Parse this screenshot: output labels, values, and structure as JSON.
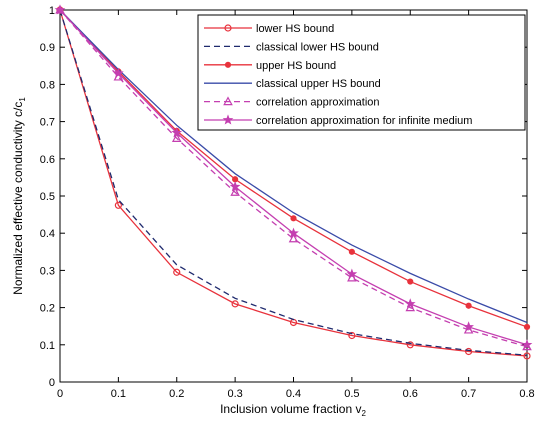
{
  "chart_data": {
    "type": "line",
    "title": "",
    "xlabel": "Inclusion volume fraction v",
    "xlabel_sub": "2",
    "ylabel": "Normalized effective conductivity c/c",
    "ylabel_sub": "1",
    "xlim": [
      0,
      0.8
    ],
    "ylim": [
      0,
      1
    ],
    "xticks": [
      "0",
      "0.1",
      "0.2",
      "0.3",
      "0.4",
      "0.5",
      "0.6",
      "0.7",
      "0.8"
    ],
    "yticks": [
      "0",
      "0.1",
      "0.2",
      "0.3",
      "0.4",
      "0.5",
      "0.6",
      "0.7",
      "0.8",
      "0.9",
      "1"
    ],
    "xtick_values": [
      0,
      0.1,
      0.2,
      0.3,
      0.4,
      0.5,
      0.6,
      0.7,
      0.8
    ],
    "ytick_values": [
      0,
      0.1,
      0.2,
      0.3,
      0.4,
      0.5,
      0.6,
      0.7,
      0.8,
      0.9,
      1
    ],
    "grid": false,
    "legend_position": "top-right",
    "x": [
      0,
      0.1,
      0.2,
      0.3,
      0.4,
      0.5,
      0.6,
      0.7,
      0.8
    ],
    "series": [
      {
        "name": "lower HS bound",
        "color": "#e8323c",
        "dash": "solid",
        "marker": "circle",
        "values": [
          1.0,
          0.475,
          0.295,
          0.21,
          0.16,
          0.125,
          0.1,
          0.082,
          0.07
        ]
      },
      {
        "name": "classical lower HS bound",
        "color": "#1f2a6e",
        "dash": "dashed",
        "marker": "none",
        "values": [
          1.0,
          0.49,
          0.315,
          0.225,
          0.168,
          0.13,
          0.104,
          0.085,
          0.072
        ]
      },
      {
        "name": "upper HS bound",
        "color": "#e8323c",
        "dash": "solid",
        "marker": "dot",
        "values": [
          1.0,
          0.835,
          0.675,
          0.545,
          0.44,
          0.35,
          0.27,
          0.205,
          0.148
        ]
      },
      {
        "name": "classical upper HS bound",
        "color": "#3a4ba8",
        "dash": "solid",
        "marker": "none",
        "values": [
          1.0,
          0.84,
          0.69,
          0.56,
          0.455,
          0.368,
          0.292,
          0.223,
          0.16
        ]
      },
      {
        "name": "correlation approximation",
        "color": "#c43fb0",
        "dash": "dashed",
        "marker": "triangle",
        "values": [
          1.0,
          0.82,
          0.655,
          0.51,
          0.385,
          0.28,
          0.2,
          0.14,
          0.095
        ]
      },
      {
        "name": "correlation approximation for infinite medium",
        "color": "#c43fb0",
        "dash": "solid",
        "marker": "star",
        "values": [
          1.0,
          0.83,
          0.67,
          0.525,
          0.4,
          0.29,
          0.21,
          0.148,
          0.1
        ]
      }
    ]
  }
}
